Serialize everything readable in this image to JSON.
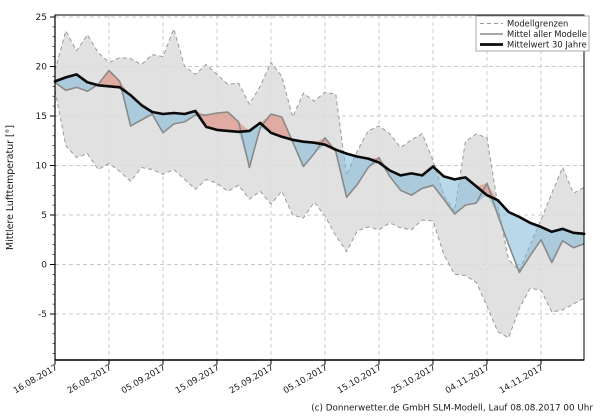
{
  "page": {
    "background": "#ffffff"
  },
  "footer": {
    "credit": "(c) Donnerwetter.de GmbH SLM-Modell, Lauf 08.08.2017 00 Uhr"
  },
  "chart_data": {
    "type": "line",
    "title": "",
    "xlabel": "",
    "ylabel": "Mittlere Lufttemperatur [°]",
    "year": "2017",
    "ylim": [
      -9.5,
      25.5
    ],
    "grid": true,
    "legend_position": "top-right",
    "y_ticks": [
      -5,
      0,
      5,
      10,
      15,
      20,
      25
    ],
    "x_tick_labels": [
      "16.08.2017",
      "26.08.2017",
      "05.09.2017",
      "15.09.2017",
      "25.09.2017",
      "05.10.2017",
      "15.10.2017",
      "25.10.2017",
      "04.11.2017",
      "14.11.2017"
    ],
    "x_tick_day_offsets": [
      0,
      10,
      20,
      30,
      40,
      50,
      60,
      70,
      80,
      90
    ],
    "start_date": "16.08.2017",
    "day_offsets": [
      0,
      2,
      4,
      6,
      8,
      10,
      12,
      14,
      16,
      18,
      20,
      22,
      24,
      26,
      28,
      30,
      32,
      34,
      36,
      38,
      40,
      42,
      44,
      46,
      48,
      50,
      52,
      54,
      56,
      58,
      60,
      62,
      64,
      66,
      68,
      70,
      72,
      74,
      76,
      78,
      80,
      82,
      84,
      86,
      88,
      90,
      92,
      94,
      96,
      98
    ],
    "sample_dates": [
      "16.08",
      "18.08",
      "20.08",
      "22.08",
      "24.08",
      "26.08",
      "28.08",
      "30.08",
      "01.09",
      "03.09",
      "05.09",
      "07.09",
      "09.09",
      "11.09",
      "13.09",
      "15.09",
      "17.09",
      "19.09",
      "21.09",
      "23.09",
      "25.09",
      "27.09",
      "29.09",
      "01.10",
      "03.10",
      "05.10",
      "07.10",
      "09.10",
      "11.10",
      "13.10",
      "15.10",
      "17.10",
      "19.10",
      "21.10",
      "23.10",
      "25.10",
      "27.10",
      "29.10",
      "31.10",
      "02.11",
      "04.11",
      "06.11",
      "08.11",
      "10.11",
      "12.11",
      "14.11",
      "16.11",
      "18.11",
      "20.11",
      "22.11"
    ],
    "series": [
      {
        "name": "Modellgrenzen (obere Grenze)",
        "role": "upper_bound",
        "values": [
          19.6,
          23.6,
          21.6,
          23.2,
          21.4,
          20.4,
          20.9,
          20.8,
          20.2,
          21.2,
          21.0,
          23.8,
          20.0,
          19.2,
          20.2,
          19.2,
          18.2,
          18.3,
          16.2,
          18.0,
          20.4,
          19.0,
          14.9,
          17.3,
          16.5,
          17.4,
          17.2,
          9.0,
          11.5,
          13.5,
          14.0,
          13.2,
          11.8,
          12.6,
          13.2,
          10.5,
          7.0,
          5.4,
          12.4,
          13.2,
          12.8,
          6.0,
          0.5,
          -0.6,
          2.0,
          4.5,
          7.2,
          9.8,
          7.2,
          7.8
        ]
      },
      {
        "name": "Modellgrenzen (untere Grenze)",
        "role": "lower_bound",
        "values": [
          17.6,
          12.0,
          10.8,
          11.2,
          9.6,
          10.2,
          9.4,
          8.4,
          9.8,
          9.6,
          9.1,
          9.6,
          8.6,
          7.6,
          8.6,
          8.2,
          7.4,
          8.0,
          6.6,
          7.4,
          6.1,
          7.4,
          5.0,
          4.7,
          6.3,
          4.9,
          2.9,
          1.3,
          3.4,
          3.8,
          3.5,
          4.2,
          3.7,
          3.5,
          4.5,
          4.4,
          1.0,
          -1.0,
          -1.1,
          -1.8,
          -4.2,
          -6.8,
          -7.4,
          -4.4,
          -2.4,
          -2.6,
          -4.8,
          -4.6,
          -4.0,
          -3.4
        ]
      },
      {
        "name": "Mittel aller Modelle",
        "role": "model_mean",
        "values": [
          18.4,
          17.6,
          17.9,
          17.5,
          18.2,
          19.6,
          18.5,
          14.0,
          14.6,
          15.2,
          13.3,
          14.2,
          14.4,
          15.1,
          15.1,
          15.3,
          15.4,
          14.4,
          9.8,
          13.8,
          15.2,
          14.9,
          12.4,
          9.9,
          11.2,
          12.8,
          11.4,
          6.8,
          8.1,
          9.8,
          10.8,
          8.9,
          7.5,
          7.0,
          7.7,
          8.0,
          6.6,
          5.1,
          6.0,
          6.2,
          8.2,
          5.0,
          2.0,
          -0.8,
          0.9,
          2.5,
          0.2,
          2.4,
          1.7,
          2.1
        ]
      },
      {
        "name": "Mittelwert 30 Jahre",
        "role": "climate_mean",
        "values": [
          18.5,
          18.9,
          19.2,
          18.4,
          18.1,
          18.0,
          17.9,
          17.1,
          16.1,
          15.4,
          15.2,
          15.3,
          15.2,
          15.5,
          13.9,
          13.6,
          13.5,
          13.4,
          13.5,
          14.3,
          13.3,
          12.9,
          12.6,
          12.4,
          12.3,
          12.1,
          11.6,
          11.2,
          10.9,
          10.7,
          10.3,
          9.5,
          9.0,
          9.2,
          9.0,
          9.9,
          8.9,
          8.6,
          8.8,
          7.9,
          7.0,
          6.5,
          5.3,
          4.8,
          4.2,
          3.8,
          3.3,
          3.6,
          3.2,
          3.1
        ]
      }
    ],
    "legend": [
      {
        "label": "Modellgrenzen",
        "style": "dashed-gray"
      },
      {
        "label": "Mittel aller Modelle",
        "style": "solid-gray"
      },
      {
        "label": "Mittelwert 30 Jahre",
        "style": "solid-black-thick"
      }
    ],
    "colors": {
      "band_fill": "#dcdcdc",
      "bound_line": "#9a9a9a",
      "model_mean_line": "#8a8a8a",
      "climate_mean_line": "#0a0a0a",
      "warm_anomaly_fill": "#e08070",
      "cold_anomaly_fill": "#7fb9da",
      "grid": "#c9c9c9"
    }
  }
}
